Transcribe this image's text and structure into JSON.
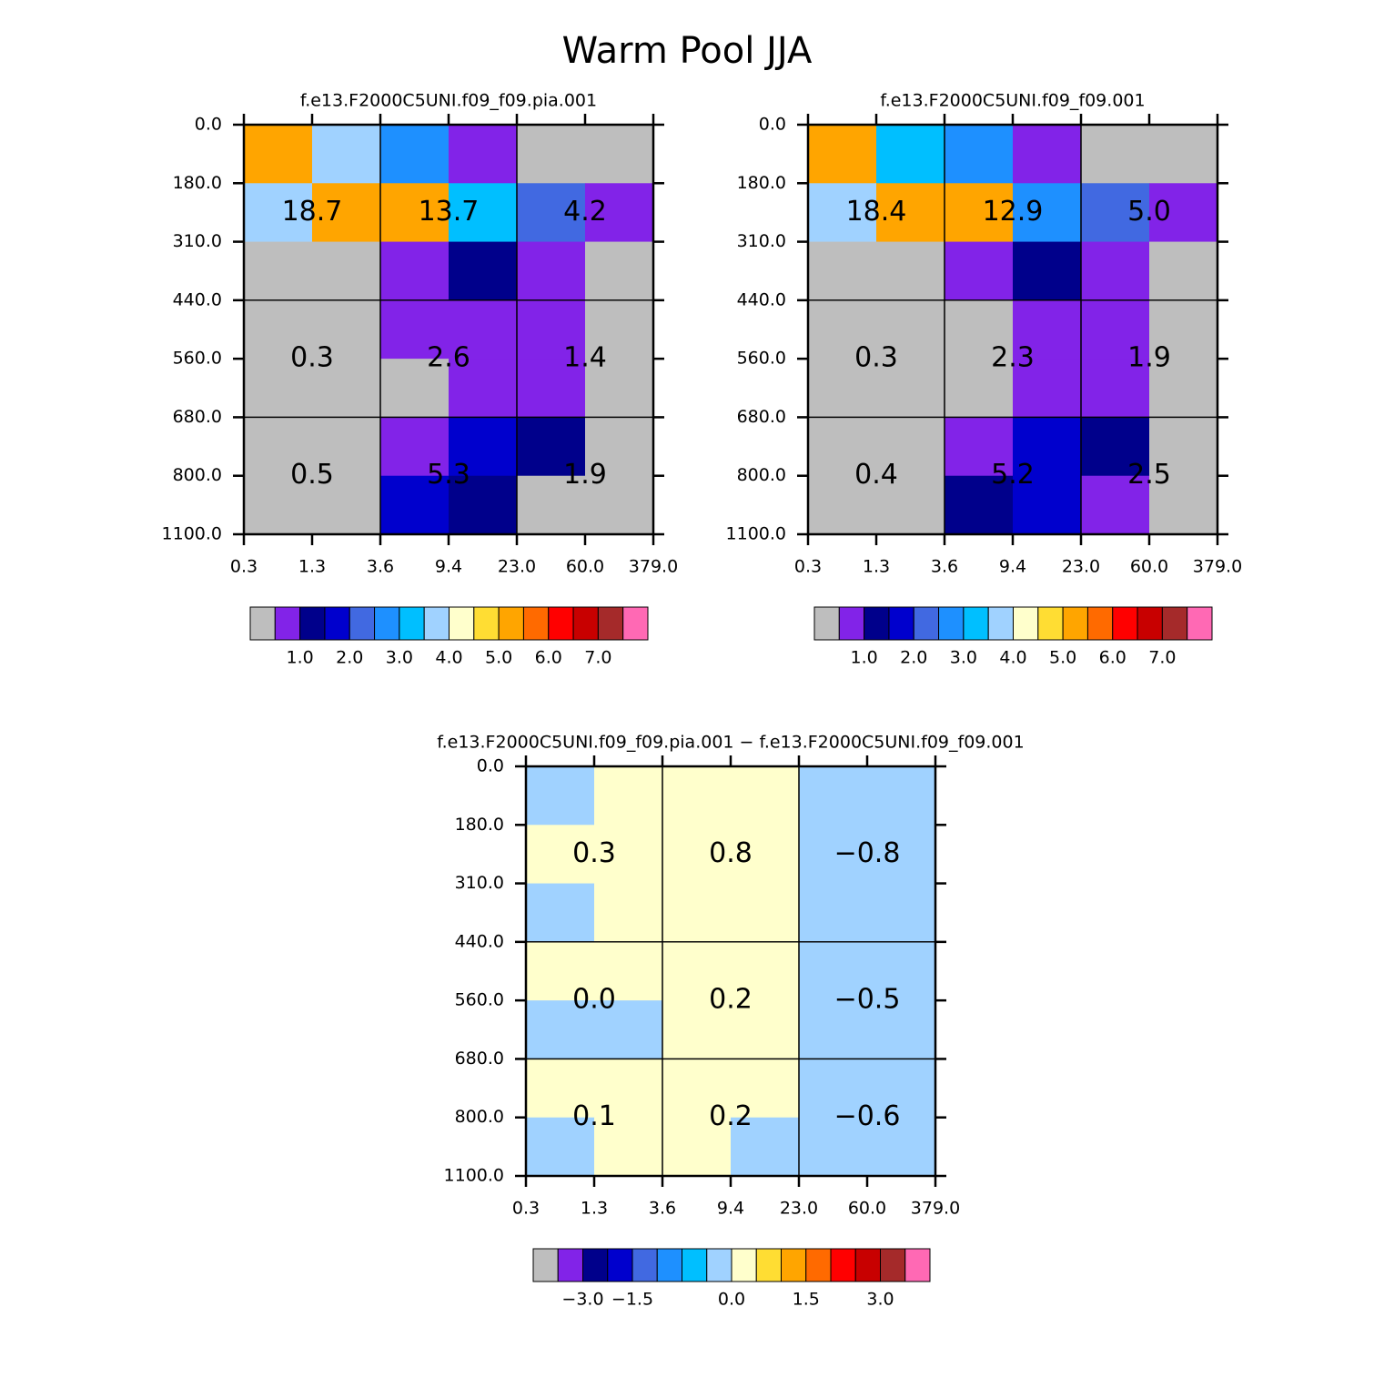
{
  "title": "Warm Pool JJA",
  "chart_data": [
    {
      "type": "heatmap",
      "title": "f.e13.F2000C5UNI.f09_f09.pia.001",
      "x_edge_labels": [
        "0.3",
        "1.3",
        "3.6",
        "9.4",
        "23.0",
        "60.0",
        "379.0"
      ],
      "y_edge_labels": [
        "0.0",
        "180.0",
        "310.0",
        "440.0",
        "560.0",
        "680.0",
        "800.0",
        "1100.0"
      ],
      "values": [
        [
          5.2,
          3.7,
          2.7,
          0.8,
          0.4,
          0.3
        ],
        [
          3.8,
          5.3,
          5.1,
          3.2,
          2.1,
          0.7
        ],
        [
          0.3,
          0.2,
          0.7,
          1.2,
          0.5,
          0.2
        ],
        [
          0.1,
          0.1,
          0.7,
          0.8,
          0.6,
          0.1
        ],
        [
          0.05,
          0.05,
          0.3,
          0.8,
          0.6,
          0.1
        ],
        [
          0.1,
          0.1,
          0.8,
          1.7,
          1.3,
          0.3
        ],
        [
          0.2,
          0.1,
          1.6,
          1.2,
          0.2,
          0.1
        ]
      ],
      "block_values": [
        [
          18.7,
          13.7,
          4.2
        ],
        [
          0.3,
          2.6,
          1.4
        ],
        [
          0.5,
          5.3,
          1.9
        ]
      ],
      "block_value_labels": [
        [
          "18.7",
          "13.7",
          "4.2"
        ],
        [
          "0.3",
          "2.6",
          "1.4"
        ],
        [
          "0.5",
          "5.3",
          "1.9"
        ]
      ],
      "colors": [
        "#bebebe",
        "#8223e8",
        "#00008b",
        "#0000cd",
        "#4169e1",
        "#1e90ff",
        "#00bfff",
        "#a0d2ff",
        "#ffffcc",
        "#ffdd33",
        "#ffa500",
        "#ff6a00",
        "#ff0000",
        "#c80000",
        "#a52a2a",
        "#ff69b4"
      ],
      "levels": [
        0.5,
        1.0,
        1.5,
        2.0,
        2.5,
        3.0,
        3.5,
        4.0,
        4.5,
        5.0,
        5.5,
        6.0,
        6.5,
        7.0,
        7.5
      ],
      "colorbar_ticks": [
        {
          "value": 1,
          "label": "1.0"
        },
        {
          "value": 2,
          "label": "2.0"
        },
        {
          "value": 3,
          "label": "3.0"
        },
        {
          "value": 4,
          "label": "4.0"
        },
        {
          "value": 5,
          "label": "5.0"
        },
        {
          "value": 6,
          "label": "6.0"
        },
        {
          "value": 7,
          "label": "7.0"
        }
      ]
    },
    {
      "type": "heatmap",
      "title": "f.e13.F2000C5UNI.f09_f09.001",
      "x_edge_labels": [
        "0.3",
        "1.3",
        "3.6",
        "9.4",
        "23.0",
        "60.0",
        "379.0"
      ],
      "y_edge_labels": [
        "0.0",
        "180.0",
        "310.0",
        "440.0",
        "560.0",
        "680.0",
        "800.0",
        "1100.0"
      ],
      "values": [
        [
          5.2,
          3.3,
          2.6,
          0.7,
          0.4,
          0.3
        ],
        [
          3.8,
          5.3,
          5.0,
          2.7,
          2.2,
          0.9
        ],
        [
          0.4,
          0.4,
          0.7,
          1.2,
          0.8,
          0.4
        ],
        [
          0.1,
          0.1,
          0.4,
          0.7,
          0.9,
          0.1
        ],
        [
          0.05,
          0.05,
          0.4,
          0.8,
          0.8,
          0.1
        ],
        [
          0.1,
          0.1,
          0.9,
          1.6,
          1.2,
          0.2
        ],
        [
          0.1,
          0.1,
          1.1,
          1.6,
          0.9,
          0.2
        ]
      ],
      "block_values": [
        [
          18.4,
          12.9,
          5.0
        ],
        [
          0.3,
          2.3,
          1.9
        ],
        [
          0.4,
          5.2,
          2.5
        ]
      ],
      "block_value_labels": [
        [
          "18.4",
          "12.9",
          "5.0"
        ],
        [
          "0.3",
          "2.3",
          "1.9"
        ],
        [
          "0.4",
          "5.2",
          "2.5"
        ]
      ],
      "colors": [
        "#bebebe",
        "#8223e8",
        "#00008b",
        "#0000cd",
        "#4169e1",
        "#1e90ff",
        "#00bfff",
        "#a0d2ff",
        "#ffffcc",
        "#ffdd33",
        "#ffa500",
        "#ff6a00",
        "#ff0000",
        "#c80000",
        "#a52a2a",
        "#ff69b4"
      ],
      "levels": [
        0.5,
        1.0,
        1.5,
        2.0,
        2.5,
        3.0,
        3.5,
        4.0,
        4.5,
        5.0,
        5.5,
        6.0,
        6.5,
        7.0,
        7.5
      ],
      "colorbar_ticks": [
        {
          "value": 1,
          "label": "1.0"
        },
        {
          "value": 2,
          "label": "2.0"
        },
        {
          "value": 3,
          "label": "3.0"
        },
        {
          "value": 4,
          "label": "4.0"
        },
        {
          "value": 5,
          "label": "5.0"
        },
        {
          "value": 6,
          "label": "6.0"
        },
        {
          "value": 7,
          "label": "7.0"
        }
      ]
    },
    {
      "type": "heatmap",
      "title": "f.e13.F2000C5UNI.f09_f09.pia.001 − f.e13.F2000C5UNI.f09_f09.001",
      "x_edge_labels": [
        "0.3",
        "1.3",
        "3.6",
        "9.4",
        "23.0",
        "60.0",
        "379.0"
      ],
      "y_edge_labels": [
        "0.0",
        "180.0",
        "310.0",
        "440.0",
        "560.0",
        "680.0",
        "800.0",
        "1100.0"
      ],
      "values": [
        [
          -0.1,
          0.1,
          0.1,
          0.1,
          -0.1,
          -0.1
        ],
        [
          0.1,
          0.2,
          0.2,
          0.2,
          -0.1,
          -0.2
        ],
        [
          -0.1,
          0.1,
          0.1,
          0.1,
          -0.2,
          -0.1
        ],
        [
          0.1,
          0.1,
          0.1,
          0.05,
          -0.1,
          -0.1
        ],
        [
          -0.1,
          -0.1,
          0.0,
          0.05,
          -0.2,
          -0.1
        ],
        [
          0.1,
          0.05,
          0.1,
          0.1,
          -0.1,
          -0.2
        ],
        [
          -0.1,
          0.05,
          0.1,
          -0.1,
          -0.2,
          -0.1
        ]
      ],
      "block_values": [
        [
          0.3,
          0.8,
          -0.8
        ],
        [
          0.0,
          0.2,
          -0.5
        ],
        [
          0.1,
          0.2,
          -0.6
        ]
      ],
      "block_value_labels": [
        [
          "0.3",
          "0.8",
          "−0.8"
        ],
        [
          "0.0",
          "0.2",
          "−0.5"
        ],
        [
          "0.1",
          "0.2",
          "−0.6"
        ]
      ],
      "colors": [
        "#bebebe",
        "#8223e8",
        "#00008b",
        "#0000cd",
        "#4169e1",
        "#1e90ff",
        "#00bfff",
        "#a0d2ff",
        "#ffffcc",
        "#ffdd33",
        "#ffa500",
        "#ff6a00",
        "#ff0000",
        "#c80000",
        "#a52a2a",
        "#ff69b4"
      ],
      "levels": [
        -4,
        -3,
        -2,
        -1.5,
        -1,
        -0.5,
        -0.2,
        0,
        0.5,
        1,
        1.5,
        2,
        2.5,
        3,
        4
      ],
      "colorbar_ticks": [
        {
          "value": -3,
          "label": "−3.0"
        },
        {
          "value": -1.5,
          "label": "−1.5"
        },
        {
          "value": 0,
          "label": "0.0"
        },
        {
          "value": 1.5,
          "label": "1.5"
        },
        {
          "value": 3,
          "label": "3.0"
        }
      ]
    }
  ]
}
